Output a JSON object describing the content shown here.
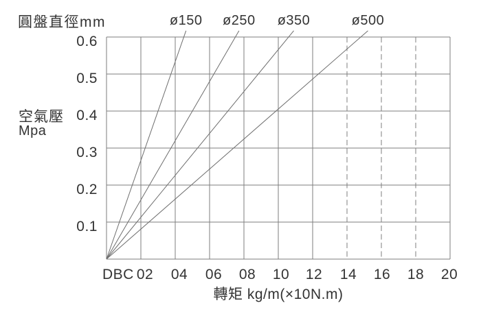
{
  "page": {
    "background": "#ffffff",
    "text_color": "#333333",
    "grid_color": "#7d7d7d",
    "series_line_color": "#6d6d6d"
  },
  "chart_data": {
    "type": "line",
    "top_axis_title": "圓盤直徑mm",
    "ylabel_line1": "空氣壓",
    "ylabel_line2": "Mpa",
    "xlabel": "轉矩 kg/m(×10N.m)",
    "x_prefix": "DBC",
    "xlim": [
      0,
      20
    ],
    "ylim": [
      0,
      0.6
    ],
    "grid": true,
    "x_tick_labels": [
      "02",
      "04",
      "06",
      "08",
      "10",
      "12",
      "14",
      "16",
      "18",
      "20"
    ],
    "x_tick_values": [
      2,
      4,
      6,
      8,
      10,
      12,
      14,
      16,
      18,
      20
    ],
    "x_dashed_gridline_values": [
      14,
      16,
      18
    ],
    "y_tick_labels": [
      "0.6",
      "0.5",
      "0.4",
      "0.3",
      "0.2",
      "0.1"
    ],
    "y_tick_values": [
      0.6,
      0.5,
      0.4,
      0.3,
      0.2,
      0.1
    ],
    "series_label_position": "above-top-axis",
    "series": [
      {
        "name": "ø150",
        "diameter_mm": 150,
        "points": [
          [
            0,
            0
          ],
          [
            4.5,
            0.6
          ]
        ]
      },
      {
        "name": "ø250",
        "diameter_mm": 250,
        "points": [
          [
            0,
            0
          ],
          [
            7.5,
            0.6
          ]
        ]
      },
      {
        "name": "ø350",
        "diameter_mm": 350,
        "points": [
          [
            0,
            0
          ],
          [
            10.6,
            0.6
          ]
        ]
      },
      {
        "name": "ø500",
        "diameter_mm": 500,
        "points": [
          [
            0,
            0
          ],
          [
            14.8,
            0.6
          ]
        ]
      }
    ]
  }
}
